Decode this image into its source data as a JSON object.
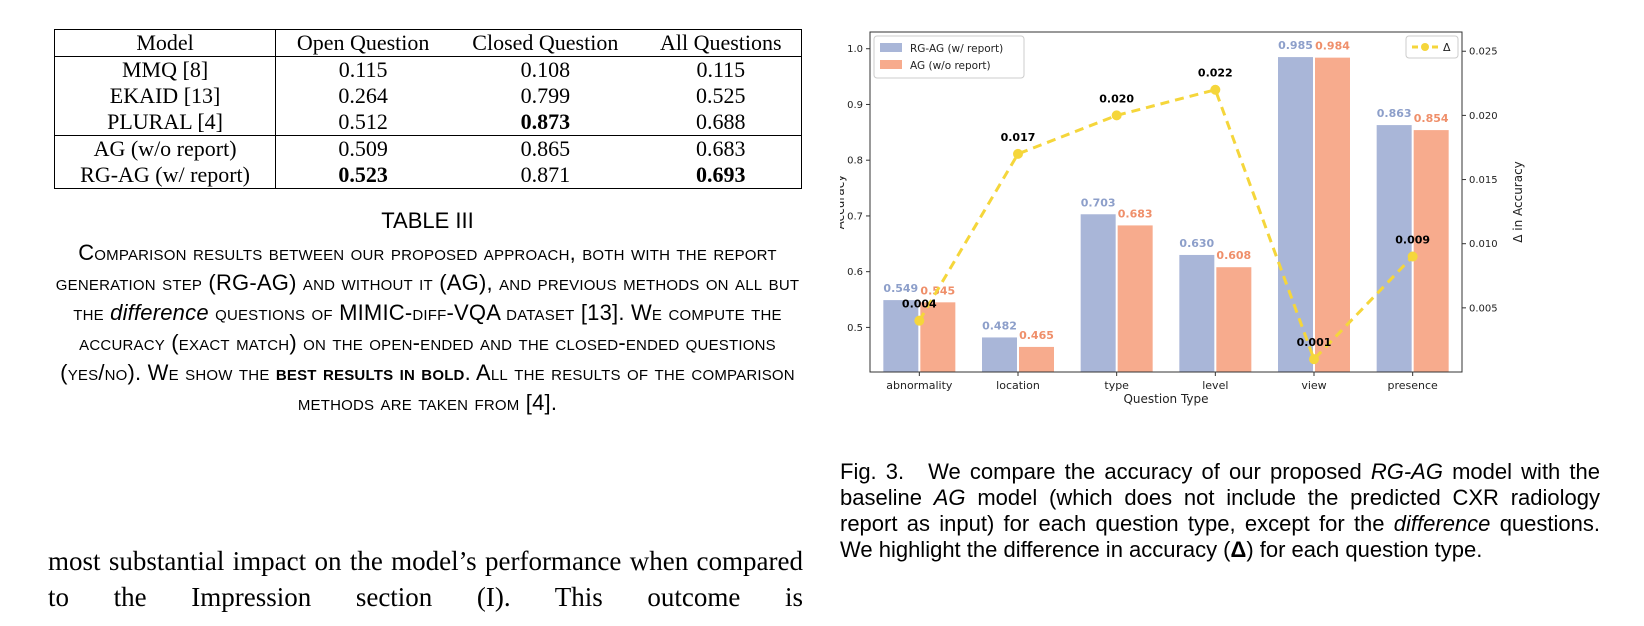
{
  "table": {
    "headers": [
      "Model",
      "Open Question",
      "Closed Question",
      "All Questions"
    ],
    "rows": [
      {
        "model": "MMQ [8]",
        "open": "0.115",
        "closed": "0.108",
        "all": "0.115"
      },
      {
        "model": "EKAID [13]",
        "open": "0.264",
        "closed": "0.799",
        "all": "0.525"
      },
      {
        "model": "PLURAL [4]",
        "open": "0.512",
        "closed": "0.873",
        "all": "0.688"
      },
      {
        "model": "AG (w/o report)",
        "open": "0.509",
        "closed": "0.865",
        "all": "0.683"
      },
      {
        "model": "RG-AG (w/ report)",
        "open": "0.523",
        "closed": "0.871",
        "all": "0.693"
      }
    ],
    "label": "TABLE III",
    "caption": {
      "p1": "Comparison results between our proposed approach, both with the report generation step (RG-AG) and without it (AG), and previous methods on all but the ",
      "em": "difference",
      "p2": " questions of MIMIC-diff-VQA dataset [13]. We compute the accuracy (exact match) on the open-ended and the closed-ended questions (yes/no). We show the ",
      "bold": "best results in bold",
      "p3": ". All the results of the comparison methods are taken from [4]."
    }
  },
  "body_text": "most substantial impact on the model’s performance when compared to the Impression section (I). This outcome is",
  "figure_caption": {
    "num": "Fig. 3.",
    "p1": "We compare the accuracy of our proposed ",
    "em1": "RG-AG",
    "p2": " model with the baseline ",
    "em2": "AG",
    "p3": " model (which does not include the predicted CXR radiology report as input) for each question type, except for the ",
    "em3": "difference",
    "p4": " questions. We highlight the difference in accuracy (",
    "delta": "Δ",
    "p5": ") for each question type."
  },
  "colors": {
    "rgag": "#a9b6d8",
    "ag": "#f7ab8d",
    "rgag_label": "#8d9fca",
    "ag_label": "#ef8f6a",
    "delta": "#f5d63b"
  },
  "chart_data": {
    "type": "bar",
    "categories": [
      "abnormality",
      "location",
      "type",
      "level",
      "view",
      "presence"
    ],
    "series": [
      {
        "name": "RG-AG (w/ report)",
        "values": [
          0.549,
          0.482,
          0.703,
          0.63,
          0.985,
          0.863
        ]
      },
      {
        "name": "AG (w/o report)",
        "values": [
          0.545,
          0.465,
          0.683,
          0.608,
          0.984,
          0.854
        ]
      }
    ],
    "delta_series": {
      "name": "Δ",
      "values": [
        0.004,
        0.017,
        0.02,
        0.022,
        0.001,
        0.009
      ]
    },
    "xlabel": "Question Type",
    "ylabel": "Accuracy",
    "y2label": "Δ in Accuracy",
    "ylim": [
      0.42,
      1.03
    ],
    "y2lim": [
      0.0,
      0.0265
    ],
    "yticks": [
      "0.5",
      "0.6",
      "0.7",
      "0.8",
      "0.9",
      "1.0"
    ],
    "y2ticks": [
      "0.005",
      "0.010",
      "0.015",
      "0.020",
      "0.025"
    ],
    "legend": "top-left",
    "legend2": "top-right",
    "grid": false
  }
}
